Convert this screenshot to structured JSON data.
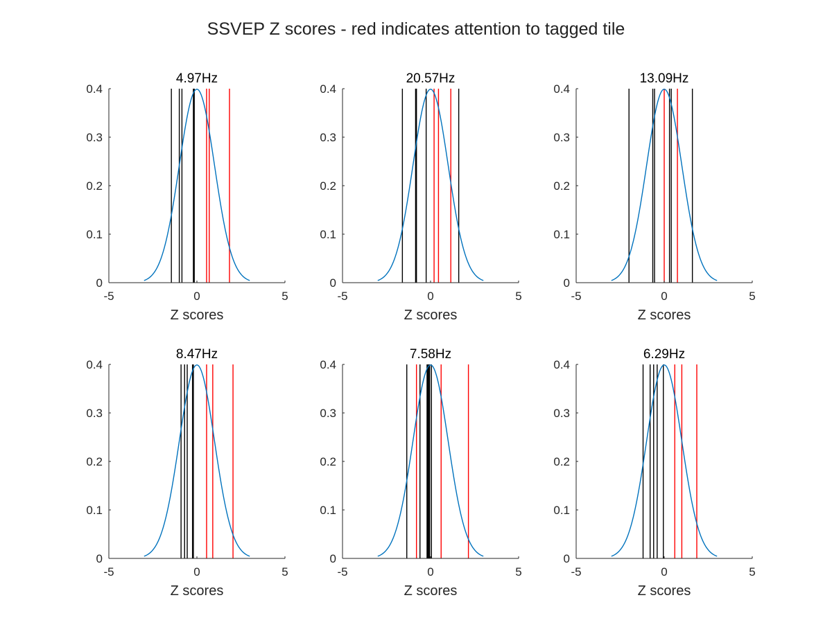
{
  "figure": {
    "suptitle": "SSVEP Z scores - red indicates attention to tagged tile"
  },
  "colors": {
    "curve": "#0072BD",
    "attended": "#FF0000",
    "unattended": "#000000",
    "axis": "#262626"
  },
  "chart_data": [
    {
      "type": "line",
      "title": "4.97Hz",
      "xlabel": "Z scores",
      "ylabel": "",
      "xlim": [
        -5,
        5
      ],
      "ylim": [
        0,
        0.4
      ],
      "xticks": [
        "-5",
        "0",
        "5"
      ],
      "yticks": [
        "0",
        "0.1",
        "0.2",
        "0.3",
        "0.4"
      ],
      "curve": {
        "name": "",
        "function": "standard normal pdf",
        "x_range": [
          -3,
          3
        ]
      },
      "black_lines": [
        -1.45,
        -1.0,
        -0.85,
        -0.2,
        -0.15
      ],
      "red_lines": [
        0.55,
        0.7,
        1.85
      ]
    },
    {
      "type": "line",
      "title": "20.57Hz",
      "xlabel": "Z scores",
      "ylabel": "",
      "xlim": [
        -5,
        5
      ],
      "ylim": [
        0,
        0.4
      ],
      "xticks": [
        "-5",
        "0",
        "5"
      ],
      "yticks": [
        "0",
        "0.1",
        "0.2",
        "0.3",
        "0.4"
      ],
      "curve": {
        "name": "",
        "function": "standard normal pdf",
        "x_range": [
          -3,
          3
        ]
      },
      "black_lines": [
        -1.6,
        -0.85,
        -0.8,
        -0.25,
        1.6
      ],
      "red_lines": [
        0.2,
        0.45,
        1.15
      ]
    },
    {
      "type": "line",
      "title": "13.09Hz",
      "xlabel": "Z scores",
      "ylabel": "",
      "xlim": [
        -5,
        5
      ],
      "ylim": [
        0,
        0.4
      ],
      "xticks": [
        "-5",
        "0",
        "5"
      ],
      "yticks": [
        "0",
        "0.1",
        "0.2",
        "0.3",
        "0.4"
      ],
      "curve": {
        "name": "",
        "function": "standard normal pdf",
        "x_range": [
          -3,
          3
        ]
      },
      "black_lines": [
        -2.0,
        -0.65,
        -0.55,
        0.3,
        0.4,
        1.6
      ],
      "red_lines": [
        0.0,
        0.75
      ]
    },
    {
      "type": "line",
      "title": "8.47Hz",
      "xlabel": "Z scores",
      "ylabel": "",
      "xlim": [
        -5,
        5
      ],
      "ylim": [
        0,
        0.4
      ],
      "xticks": [
        "-5",
        "0",
        "5"
      ],
      "yticks": [
        "0",
        "0.1",
        "0.2",
        "0.3",
        "0.4"
      ],
      "curve": {
        "name": "",
        "function": "standard normal pdf",
        "x_range": [
          -3,
          3
        ]
      },
      "black_lines": [
        -0.9,
        -0.7,
        -0.55,
        -0.25,
        -0.2
      ],
      "red_lines": [
        0.55,
        0.9,
        2.05
      ]
    },
    {
      "type": "line",
      "title": "7.58Hz",
      "xlabel": "Z scores",
      "ylabel": "",
      "xlim": [
        -5,
        5
      ],
      "ylim": [
        0,
        0.4
      ],
      "xticks": [
        "-5",
        "0",
        "5"
      ],
      "yticks": [
        "0",
        "0.1",
        "0.2",
        "0.3",
        "0.4"
      ],
      "curve": {
        "name": "",
        "function": "standard normal pdf",
        "x_range": [
          -3,
          3
        ]
      },
      "black_lines": [
        -1.35,
        -0.6,
        -0.2,
        -0.15,
        -0.1,
        -0.05,
        0.05
      ],
      "red_lines": [
        -0.8,
        0.6,
        2.15
      ]
    },
    {
      "type": "line",
      "title": "6.29Hz",
      "xlabel": "Z scores",
      "ylabel": "",
      "xlim": [
        -5,
        5
      ],
      "ylim": [
        0,
        0.4
      ],
      "xticks": [
        "-5",
        "0",
        "5"
      ],
      "yticks": [
        "0",
        "0.1",
        "0.2",
        "0.3",
        "0.4"
      ],
      "curve": {
        "name": "",
        "function": "standard normal pdf",
        "x_range": [
          -3,
          3
        ]
      },
      "black_lines": [
        -1.2,
        -0.8,
        -0.6,
        -0.4,
        -0.05
      ],
      "red_lines": [
        0.6,
        1.0,
        1.85
      ]
    }
  ]
}
